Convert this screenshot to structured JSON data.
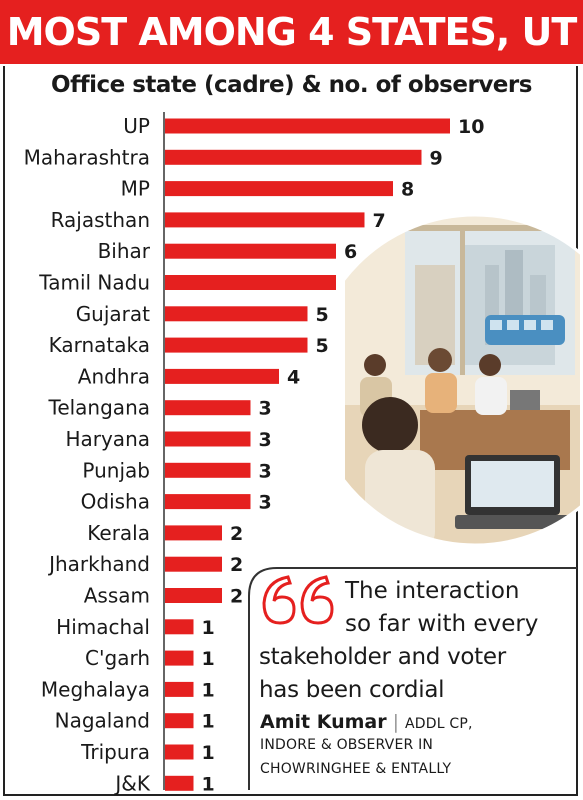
{
  "headline": "MOST AMONG 4 STATES, UT",
  "chart_data": {
    "type": "bar",
    "orientation": "horizontal",
    "title": "Office state (cadre) & no. of observers",
    "categories": [
      "UP",
      "Maharashtra",
      "MP",
      "Rajasthan",
      "Bihar",
      "Tamil Nadu",
      "Gujarat",
      "Karnataka",
      "Andhra",
      "Telangana",
      "Haryana",
      "Punjab",
      "Odisha",
      "Kerala",
      "Jharkhand",
      "Assam",
      "Himachal",
      "C'garh",
      "Meghalaya",
      "Nagaland",
      "Tripura",
      "J&K"
    ],
    "values": [
      10,
      9,
      8,
      7,
      6,
      6,
      5,
      5,
      4,
      3,
      3,
      3,
      3,
      2,
      2,
      2,
      1,
      1,
      1,
      1,
      1,
      1
    ],
    "bar_color": "#e5201f",
    "value_labels": true,
    "grid": false,
    "legend": "none"
  },
  "quote": {
    "line1": "The interaction",
    "line2": "so far with every",
    "line3": "stakeholder and voter",
    "line4": "has been cordial",
    "name": "Amit Kumar",
    "role_line1": "ADDL CP,",
    "role_line2": "INDORE & OBSERVER IN",
    "role_line3": "CHOWRINGHEE & ENTALLY"
  },
  "colors": {
    "accent": "#e5201f",
    "text": "#1a1a1a"
  },
  "icons": [
    "quote-mark-icon",
    "office-illustration"
  ]
}
